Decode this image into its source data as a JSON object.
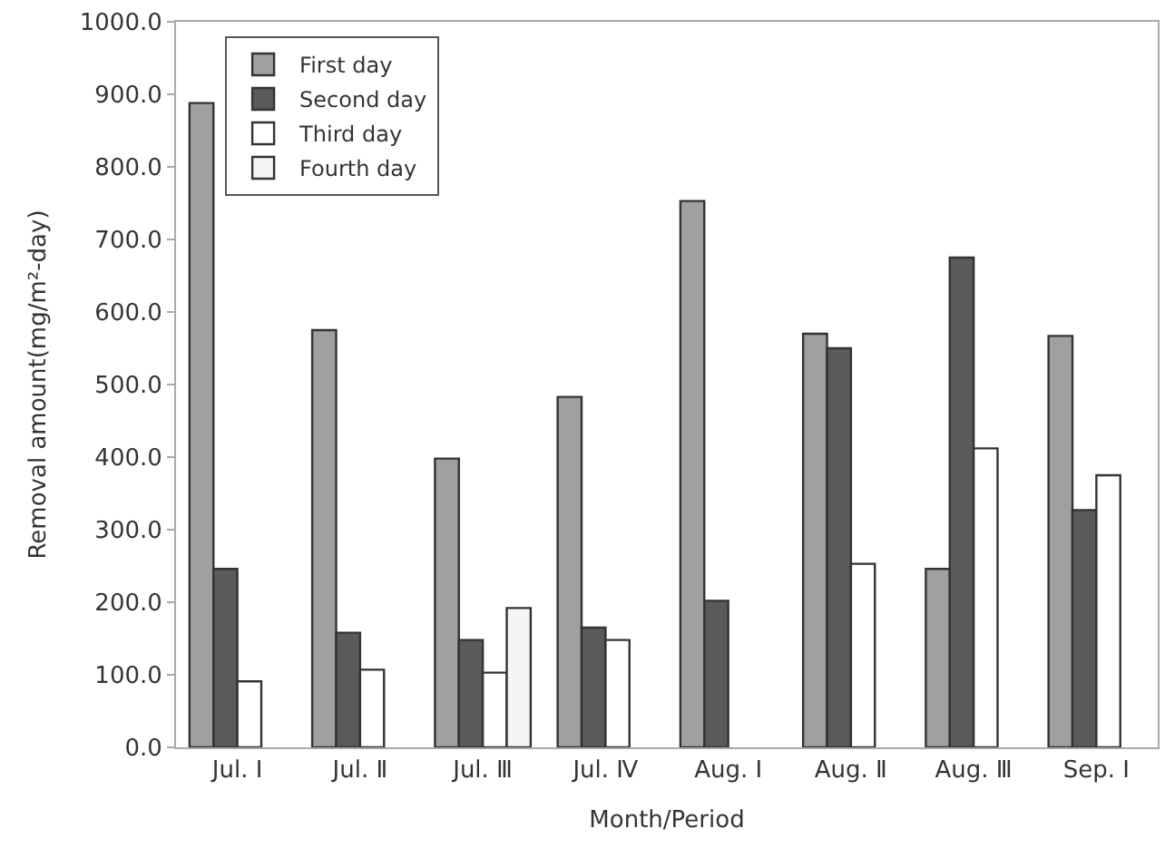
{
  "chart_data": {
    "type": "bar",
    "xlabel": "Month/Period",
    "ylabel": "Removal amount(mg/m²-day)",
    "categories": [
      "Jul. Ⅰ",
      "Jul. Ⅱ",
      "Jul. Ⅲ",
      "Jul. Ⅳ",
      "Aug. Ⅰ",
      "Aug. Ⅱ",
      "Aug. Ⅲ",
      "Sep. Ⅰ"
    ],
    "series": [
      {
        "name": "First day",
        "color": "#a0a0a0",
        "values": [
          888,
          575,
          398,
          483,
          753,
          570,
          246,
          567
        ]
      },
      {
        "name": "Second day",
        "color": "#5a5a5a",
        "values": [
          246,
          158,
          148,
          165,
          202,
          550,
          675,
          327
        ]
      },
      {
        "name": "Third day",
        "color": "#ffffff",
        "values": [
          91,
          107,
          103,
          148,
          null,
          253,
          412,
          375
        ]
      },
      {
        "name": "Fourth day",
        "color": "#f5f5f5",
        "values": [
          null,
          null,
          192,
          null,
          null,
          null,
          null,
          null
        ]
      }
    ],
    "ylim": [
      0,
      1000
    ],
    "yticks": [
      {
        "value": 0,
        "label": "0.0"
      },
      {
        "value": 100,
        "label": "100.0"
      },
      {
        "value": 200,
        "label": "200.0"
      },
      {
        "value": 300,
        "label": "300.0"
      },
      {
        "value": 400,
        "label": "400.0"
      },
      {
        "value": 500,
        "label": "500.0"
      },
      {
        "value": 600,
        "label": "600.0"
      },
      {
        "value": 700,
        "label": "700.0"
      },
      {
        "value": 800,
        "label": "800.0"
      },
      {
        "value": 900,
        "label": "900.0"
      },
      {
        "value": 1000,
        "label": "1000.0"
      }
    ],
    "legend": "top left"
  }
}
